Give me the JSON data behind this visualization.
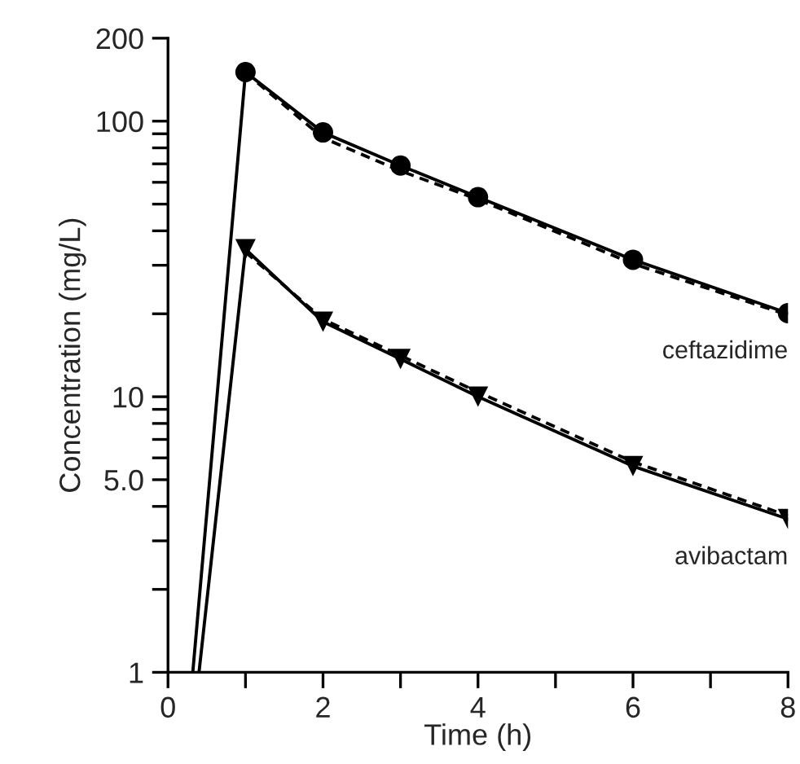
{
  "chart_data": {
    "type": "line",
    "xlabel": "Time (h)",
    "ylabel": "Concentration (mg/L)",
    "log": "y",
    "xlim": [
      0,
      8
    ],
    "xticks": [
      0,
      {
        "value": 1,
        "label": null
      },
      2,
      {
        "value": 3,
        "label": null
      },
      4,
      {
        "value": 5,
        "label": null
      },
      6,
      {
        "value": 7,
        "label": null
      },
      8
    ],
    "ylim": [
      1,
      200
    ],
    "yticks": [
      1,
      {
        "value": 2,
        "label": null
      },
      {
        "value": 3,
        "label": null
      },
      {
        "value": 4,
        "label": null
      },
      {
        "value": 5,
        "label": "5.0"
      },
      {
        "value": 6,
        "label": null
      },
      {
        "value": 7,
        "label": null
      },
      {
        "value": 8,
        "label": null
      },
      {
        "value": 9,
        "label": null
      },
      10,
      {
        "value": 20,
        "label": null
      },
      {
        "value": 30,
        "label": null
      },
      {
        "value": 40,
        "label": null
      },
      {
        "value": 50,
        "label": null
      },
      {
        "value": 60,
        "label": null
      },
      {
        "value": 70,
        "label": null
      },
      {
        "value": 80,
        "label": null
      },
      {
        "value": 90,
        "label": null
      },
      100,
      200
    ],
    "grid": false,
    "legend": false,
    "series": [
      {
        "color": "#000000",
        "x": [
          1,
          2,
          3,
          4,
          6,
          8
        ],
        "values": [
          150,
          87,
          66,
          52,
          30.4,
          19.8
        ],
        "marker": "none",
        "line_style": "dashed"
      },
      {
        "color": "#000000",
        "x": [
          1,
          2,
          3,
          4,
          6,
          8
        ],
        "values": [
          33.5,
          19.1,
          14.1,
          10.4,
          5.8,
          3.7
        ],
        "marker": "none",
        "line_style": "dashed"
      },
      {
        "name": "ceftazidime",
        "color": "#000000",
        "x": [
          0.32,
          1,
          2,
          3,
          4,
          6,
          8
        ],
        "values": [
          1,
          150.7,
          91,
          69,
          53,
          31.4,
          20.1
        ],
        "marker": "circle",
        "line_style": "solid"
      },
      {
        "name": "avibactam",
        "color": "#000000",
        "x": [
          0.4,
          1,
          2,
          3,
          4,
          6,
          8
        ],
        "values": [
          1,
          34.3,
          18.7,
          13.7,
          10,
          5.6,
          3.6
        ],
        "marker": "triangle",
        "line_style": "solid"
      }
    ]
  }
}
